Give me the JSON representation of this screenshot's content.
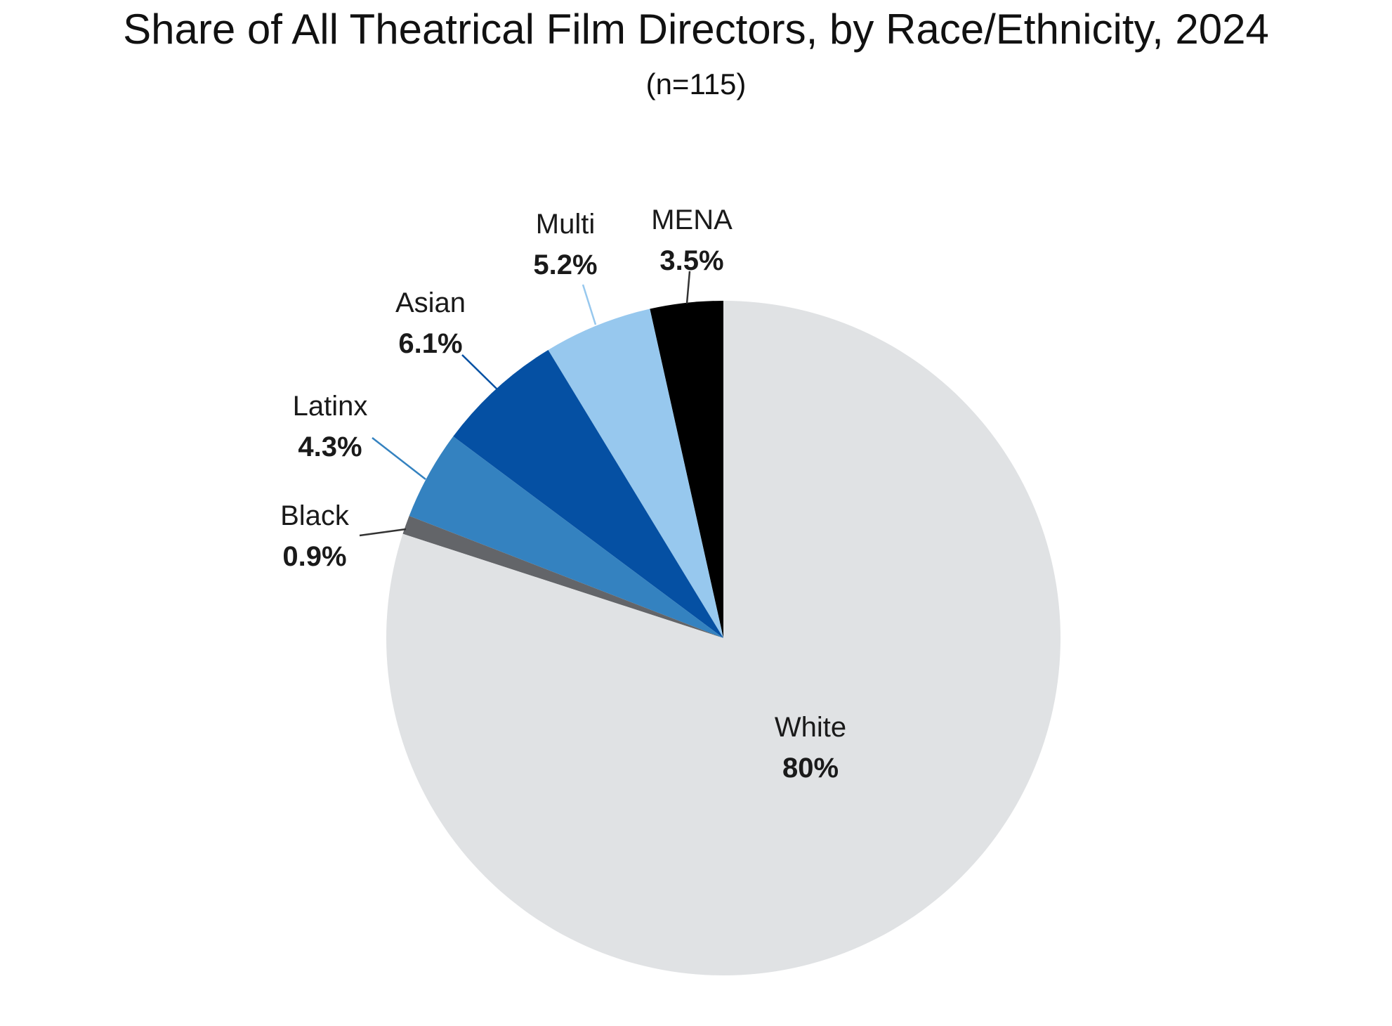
{
  "chart_data": {
    "type": "pie",
    "title": "Share of All Theatrical Film Directors, by Race/Ethnicity, 2024",
    "subtitle": "(n=115)",
    "slices": [
      {
        "name": "MENA",
        "value": 3.5,
        "label": "3.5%",
        "color": "#000000"
      },
      {
        "name": "Multi",
        "value": 5.2,
        "label": "5.2%",
        "color": "#97c8ee"
      },
      {
        "name": "Asian",
        "value": 6.1,
        "label": "6.1%",
        "color": "#0550a3"
      },
      {
        "name": "Latinx",
        "value": 4.3,
        "label": "4.3%",
        "color": "#3482c0"
      },
      {
        "name": "Black",
        "value": 0.9,
        "label": "0.9%",
        "color": "#636569"
      },
      {
        "name": "White",
        "value": 80,
        "label": "80%",
        "color": "#e0e2e4"
      }
    ],
    "start": "12 o'clock",
    "direction": "counterclockwise"
  }
}
